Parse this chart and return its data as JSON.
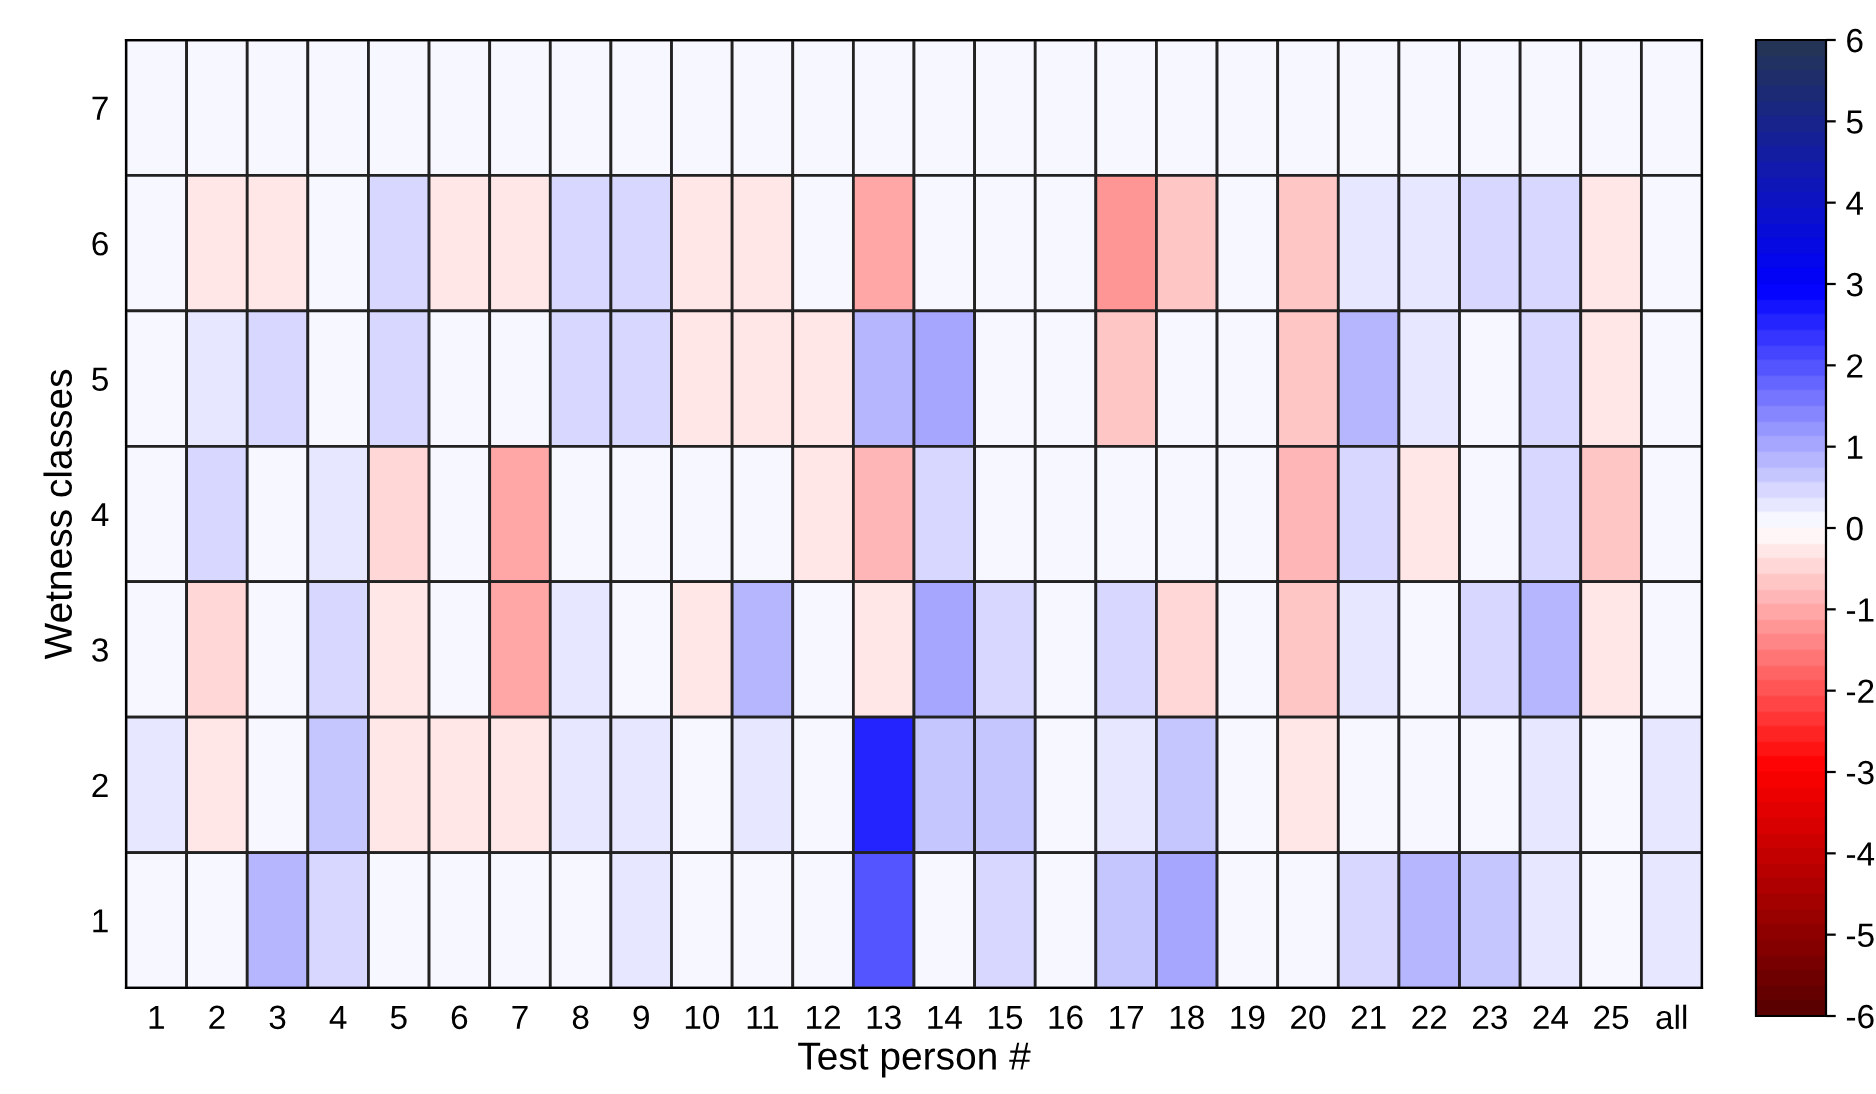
{
  "chart_data": {
    "type": "heatmap",
    "xlabel": "Test person #",
    "ylabel": "Wetness classes",
    "categories": [
      "1",
      "2",
      "3",
      "4",
      "5",
      "6",
      "7",
      "8",
      "9",
      "10",
      "11",
      "12",
      "13",
      "14",
      "15",
      "16",
      "17",
      "18",
      "19",
      "20",
      "21",
      "22",
      "23",
      "24",
      "25",
      "all"
    ],
    "y_categories": [
      "7",
      "6",
      "5",
      "4",
      "3",
      "2",
      "1"
    ],
    "cells": [
      [
        0,
        0,
        0,
        0,
        0,
        0,
        0,
        0,
        0,
        0,
        0,
        0,
        0,
        0,
        0,
        0,
        0,
        0,
        0,
        0,
        0,
        0,
        0,
        0,
        0,
        0
      ],
      [
        0,
        -0.2,
        -0.2,
        0,
        0.4,
        -0.2,
        -0.2,
        0.4,
        0.4,
        -0.2,
        -0.2,
        0,
        -1.0,
        0,
        0,
        0,
        -1.2,
        -0.6,
        0,
        -0.6,
        0.2,
        0.2,
        0.4,
        0.4,
        -0.2,
        0
      ],
      [
        0,
        0.2,
        0.4,
        0,
        0.4,
        0,
        0,
        0.4,
        0.4,
        -0.2,
        -0.2,
        -0.2,
        0.8,
        1.0,
        0,
        0,
        -0.6,
        0,
        0,
        -0.6,
        0.8,
        0.2,
        0,
        0.4,
        -0.2,
        0
      ],
      [
        0,
        0.4,
        0,
        0.2,
        -0.4,
        0,
        -1.0,
        0,
        0,
        0,
        0,
        -0.2,
        -0.8,
        0.4,
        0,
        0,
        0,
        0,
        0,
        -0.8,
        0.4,
        -0.2,
        0,
        0.4,
        -0.6,
        0
      ],
      [
        0,
        -0.4,
        0,
        0.4,
        -0.2,
        0,
        -1.0,
        0.2,
        0,
        -0.2,
        0.8,
        0,
        -0.2,
        1.0,
        0.4,
        0,
        0.4,
        -0.4,
        0,
        -0.6,
        0.2,
        0,
        0.4,
        0.8,
        -0.2,
        0
      ],
      [
        0.2,
        -0.2,
        0,
        0.6,
        -0.2,
        -0.2,
        -0.2,
        0.2,
        0.2,
        0,
        0.2,
        0,
        2.6,
        0.6,
        0.6,
        0,
        0.2,
        0.6,
        0,
        -0.2,
        0,
        0,
        0,
        0.2,
        0,
        0.2
      ],
      [
        0,
        0,
        0.8,
        0.4,
        0,
        0,
        0,
        0,
        0.2,
        0,
        0,
        0,
        2.0,
        0,
        0.4,
        0,
        0.6,
        1.0,
        0,
        0,
        0.4,
        0.8,
        0.6,
        0.2,
        0,
        0.2
      ]
    ],
    "clim": [
      -6,
      6
    ],
    "cticks": [
      -6,
      -5,
      -4,
      -3,
      -2,
      -1,
      0,
      1,
      2,
      3,
      4,
      5,
      6
    ]
  }
}
